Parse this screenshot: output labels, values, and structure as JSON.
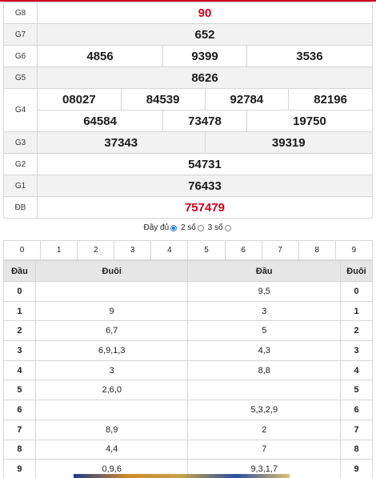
{
  "results": {
    "g8": {
      "label": "G8",
      "values": [
        "90"
      ]
    },
    "g7": {
      "label": "G7",
      "values": [
        "652"
      ]
    },
    "g6": {
      "label": "G6",
      "values": [
        "4856",
        "9399",
        "3536"
      ]
    },
    "g5": {
      "label": "G5",
      "values": [
        "8626"
      ]
    },
    "g4": {
      "label": "G4",
      "row1": [
        "08027",
        "84539",
        "92784",
        "82196"
      ],
      "row2": [
        "64584",
        "73478",
        "19750"
      ]
    },
    "g3": {
      "label": "G3",
      "values": [
        "37343",
        "39319"
      ]
    },
    "g2": {
      "label": "G2",
      "values": [
        "54731"
      ]
    },
    "g1": {
      "label": "G1",
      "values": [
        "76433"
      ]
    },
    "db": {
      "label": "ĐB",
      "values": [
        "757479"
      ]
    }
  },
  "options": {
    "full": "Đầy đủ",
    "two": "2 số",
    "three": "3 số"
  },
  "digits": [
    "0",
    "1",
    "2",
    "3",
    "4",
    "5",
    "6",
    "7",
    "8",
    "9"
  ],
  "loto": {
    "headers": [
      "Đầu",
      "Đuôi",
      "Đầu",
      "Đuôi"
    ],
    "rows": [
      {
        "dau": "0",
        "duoi": "",
        "dau2": "9,5",
        "duoi2": "0"
      },
      {
        "dau": "1",
        "duoi": "9",
        "dau2": "3",
        "duoi2": "1"
      },
      {
        "dau": "2",
        "duoi": "6,7",
        "dau2": "5",
        "duoi2": "2"
      },
      {
        "dau": "3",
        "duoi": "6,9,1,3",
        "dau2": "4,3",
        "duoi2": "3"
      },
      {
        "dau": "4",
        "duoi": "3",
        "dau2": "8,8",
        "duoi2": "4"
      },
      {
        "dau": "5",
        "duoi": "2,6,0",
        "dau2": "",
        "duoi2": "5"
      },
      {
        "dau": "6",
        "duoi": "",
        "dau2": "5,3,2,9",
        "duoi2": "6"
      },
      {
        "dau": "7",
        "duoi": "8,9",
        "dau2": "2",
        "duoi2": "7"
      },
      {
        "dau": "8",
        "duoi": "4,4",
        "dau2": "7",
        "duoi2": "8"
      },
      {
        "dau": "9",
        "duoi": "0,9,6",
        "dau2": "9,3,1,7",
        "duoi2": "9"
      }
    ]
  },
  "colors": {
    "accent": "#d0021b",
    "radio": "#2a7fd4",
    "header_bg": "#e6e6e6",
    "alt_bg": "#f2f2f2"
  }
}
